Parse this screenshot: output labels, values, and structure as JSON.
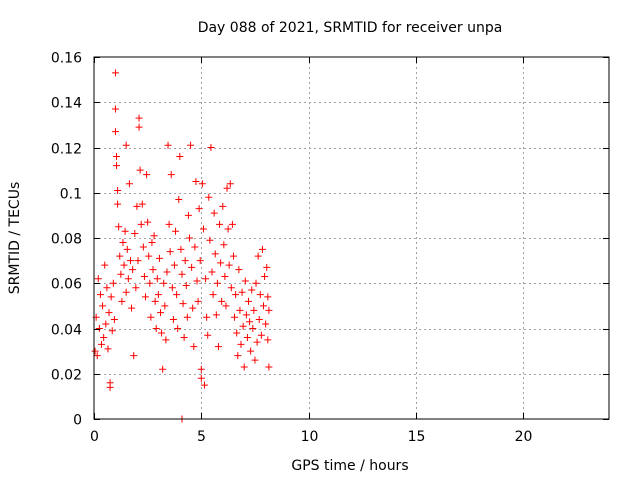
{
  "chart_data": {
    "type": "scatter",
    "title": "Day 088 of 2021, SRMTID for receiver unpa",
    "xlabel": "GPS time / hours",
    "ylabel": "SRMTID / TECUs",
    "xlim": [
      0,
      24
    ],
    "ylim": [
      0,
      0.16
    ],
    "x_ticks": [
      0,
      5,
      10,
      15,
      20
    ],
    "y_ticks": [
      0,
      0.02,
      0.04,
      0.06,
      0.08,
      0.1,
      0.12,
      0.14,
      0.16
    ],
    "x_tick_labels": [
      "0",
      "5",
      "10",
      "15",
      "20"
    ],
    "y_tick_labels": [
      "0",
      "0.02",
      "0.04",
      "0.06",
      "0.08",
      "0.1",
      "0.12",
      "0.14",
      "0.16"
    ],
    "grid": true,
    "marker": "plus",
    "color": "#ff0000",
    "series": [
      {
        "name": "SRMTID",
        "points": [
          [
            0.05,
            0.03
          ],
          [
            0.1,
            0.045
          ],
          [
            0.15,
            0.028
          ],
          [
            0.2,
            0.062
          ],
          [
            0.25,
            0.04
          ],
          [
            0.3,
            0.055
          ],
          [
            0.35,
            0.033
          ],
          [
            0.4,
            0.05
          ],
          [
            0.45,
            0.036
          ],
          [
            0.5,
            0.068
          ],
          [
            0.55,
            0.042
          ],
          [
            0.6,
            0.058
          ],
          [
            0.65,
            0.031
          ],
          [
            0.7,
            0.047
          ],
          [
            0.75,
            0.016
          ],
          [
            0.75,
            0.014
          ],
          [
            0.8,
            0.054
          ],
          [
            0.85,
            0.039
          ],
          [
            0.9,
            0.06
          ],
          [
            0.95,
            0.044
          ],
          [
            1.0,
            0.153
          ],
          [
            1.0,
            0.137
          ],
          [
            1.0,
            0.127
          ],
          [
            1.05,
            0.116
          ],
          [
            1.05,
            0.112
          ],
          [
            1.1,
            0.101
          ],
          [
            1.1,
            0.095
          ],
          [
            1.15,
            0.085
          ],
          [
            1.2,
            0.072
          ],
          [
            1.25,
            0.064
          ],
          [
            1.3,
            0.052
          ],
          [
            1.35,
            0.078
          ],
          [
            1.4,
            0.068
          ],
          [
            1.45,
            0.083
          ],
          [
            1.5,
            0.056
          ],
          [
            1.5,
            0.121
          ],
          [
            1.55,
            0.075
          ],
          [
            1.6,
            0.062
          ],
          [
            1.65,
            0.104
          ],
          [
            1.7,
            0.07
          ],
          [
            1.75,
            0.049
          ],
          [
            1.8,
            0.066
          ],
          [
            1.85,
            0.028
          ],
          [
            1.9,
            0.082
          ],
          [
            1.95,
            0.058
          ],
          [
            2.0,
            0.094
          ],
          [
            2.05,
            0.07
          ],
          [
            2.1,
            0.133
          ],
          [
            2.1,
            0.129
          ],
          [
            2.15,
            0.11
          ],
          [
            2.2,
            0.086
          ],
          [
            2.25,
            0.095
          ],
          [
            2.3,
            0.076
          ],
          [
            2.35,
            0.063
          ],
          [
            2.4,
            0.054
          ],
          [
            2.45,
            0.108
          ],
          [
            2.5,
            0.087
          ],
          [
            2.55,
            0.072
          ],
          [
            2.6,
            0.06
          ],
          [
            2.65,
            0.045
          ],
          [
            2.7,
            0.078
          ],
          [
            2.75,
            0.066
          ],
          [
            2.8,
            0.081
          ],
          [
            2.85,
            0.052
          ],
          [
            2.9,
            0.04
          ],
          [
            2.95,
            0.062
          ],
          [
            3.0,
            0.055
          ],
          [
            3.05,
            0.071
          ],
          [
            3.1,
            0.047
          ],
          [
            3.15,
            0.038
          ],
          [
            3.2,
            0.022
          ],
          [
            3.25,
            0.06
          ],
          [
            3.3,
            0.05
          ],
          [
            3.35,
            0.035
          ],
          [
            3.4,
            0.065
          ],
          [
            3.45,
            0.121
          ],
          [
            3.5,
            0.086
          ],
          [
            3.55,
            0.074
          ],
          [
            3.6,
            0.108
          ],
          [
            3.65,
            0.058
          ],
          [
            3.7,
            0.044
          ],
          [
            3.75,
            0.068
          ],
          [
            3.8,
            0.083
          ],
          [
            3.85,
            0.055
          ],
          [
            3.9,
            0.04
          ],
          [
            3.95,
            0.097
          ],
          [
            4.0,
            0.116
          ],
          [
            4.05,
            0.075
          ],
          [
            4.1,
            0.064
          ],
          [
            4.15,
            0.051
          ],
          [
            4.2,
            0.036
          ],
          [
            4.25,
            0.07
          ],
          [
            4.3,
            0.059
          ],
          [
            4.35,
            0.045
          ],
          [
            4.4,
            0.09
          ],
          [
            4.45,
            0.08
          ],
          [
            4.5,
            0.121
          ],
          [
            4.55,
            0.067
          ],
          [
            4.6,
            0.049
          ],
          [
            4.65,
            0.032
          ],
          [
            4.7,
            0.076
          ],
          [
            4.75,
            0.105
          ],
          [
            4.8,
            0.061
          ],
          [
            4.85,
            0.052
          ],
          [
            4.9,
            0.093
          ],
          [
            4.95,
            0.07
          ],
          [
            5.0,
            0.018
          ],
          [
            5.0,
            0.022
          ],
          [
            5.05,
            0.104
          ],
          [
            5.1,
            0.084
          ],
          [
            5.15,
            0.015
          ],
          [
            5.2,
            0.062
          ],
          [
            5.25,
            0.045
          ],
          [
            5.3,
            0.037
          ],
          [
            5.35,
            0.098
          ],
          [
            5.4,
            0.079
          ],
          [
            5.45,
            0.12
          ],
          [
            5.5,
            0.065
          ],
          [
            5.55,
            0.055
          ],
          [
            5.6,
            0.091
          ],
          [
            5.65,
            0.073
          ],
          [
            5.7,
            0.046
          ],
          [
            5.75,
            0.06
          ],
          [
            5.8,
            0.032
          ],
          [
            5.85,
            0.086
          ],
          [
            5.9,
            0.069
          ],
          [
            5.95,
            0.052
          ],
          [
            6.0,
            0.094
          ],
          [
            6.05,
            0.077
          ],
          [
            6.1,
            0.063
          ],
          [
            6.15,
            0.05
          ],
          [
            6.2,
            0.102
          ],
          [
            6.25,
            0.084
          ],
          [
            6.3,
            0.068
          ],
          [
            6.35,
            0.104
          ],
          [
            6.4,
            0.058
          ],
          [
            6.45,
            0.086
          ],
          [
            6.5,
            0.072
          ],
          [
            6.55,
            0.045
          ],
          [
            6.6,
            0.055
          ],
          [
            6.65,
            0.038
          ],
          [
            6.7,
            0.028
          ],
          [
            6.75,
            0.066
          ],
          [
            6.8,
            0.048
          ],
          [
            6.85,
            0.033
          ],
          [
            6.9,
            0.056
          ],
          [
            6.95,
            0.041
          ],
          [
            7.0,
            0.023
          ],
          [
            7.05,
            0.061
          ],
          [
            7.1,
            0.046
          ],
          [
            7.15,
            0.036
          ],
          [
            7.2,
            0.052
          ],
          [
            7.25,
            0.043
          ],
          [
            7.3,
            0.03
          ],
          [
            7.35,
            0.057
          ],
          [
            7.4,
            0.04
          ],
          [
            7.45,
            0.048
          ],
          [
            7.5,
            0.026
          ],
          [
            7.55,
            0.06
          ],
          [
            7.6,
            0.034
          ],
          [
            7.65,
            0.072
          ],
          [
            7.7,
            0.044
          ],
          [
            7.75,
            0.055
          ],
          [
            7.8,
            0.037
          ],
          [
            7.85,
            0.075
          ],
          [
            7.9,
            0.05
          ],
          [
            7.95,
            0.063
          ],
          [
            8.0,
            0.042
          ],
          [
            8.05,
            0.067
          ],
          [
            8.1,
            0.054
          ],
          [
            8.1,
            0.035
          ],
          [
            8.15,
            0.048
          ],
          [
            8.15,
            0.023
          ],
          [
            4.1,
            0.0
          ]
        ]
      }
    ]
  }
}
